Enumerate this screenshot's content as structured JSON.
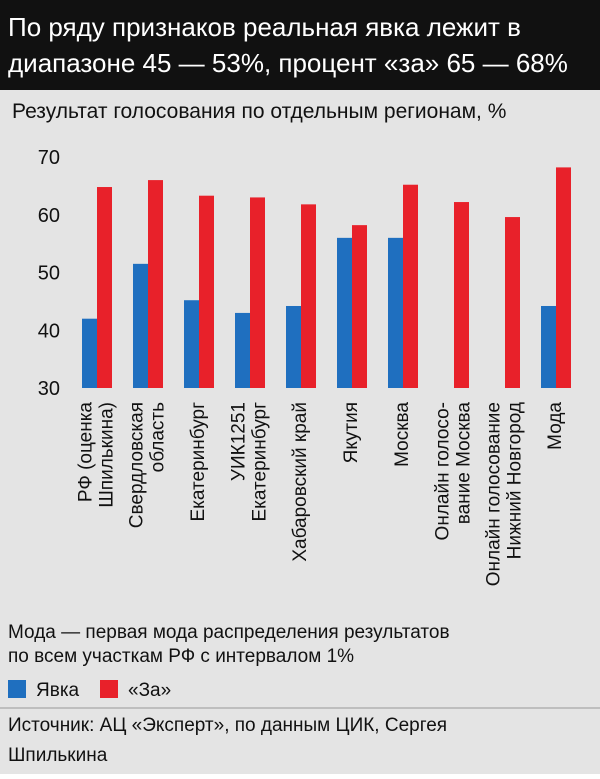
{
  "chart_data": {
    "type": "bar",
    "title": "По ряду признаков реальная явка лежит в\nдиапазоне 45 — 53%, процент «за» 65 — 68%",
    "subtitle": "Результат голосования по отдельным регионам, %",
    "categories": [
      "РФ (оценка\nШпилькина)",
      "Свердловская\nобласть",
      "Екатеринбург",
      "УИК1251\nЕкатеринбург",
      "Хабаровский край",
      "Якутия",
      "Москва",
      "Онлайн голосо-\nвание Москва",
      "Онлайн голосование\nНижний Новгород",
      "Мода"
    ],
    "series": [
      {
        "name": "Явка",
        "color": "#1f6fbf",
        "values": [
          42,
          51.5,
          45.2,
          43,
          44.2,
          56,
          56,
          null,
          null,
          44.2
        ]
      },
      {
        "name": "«За»",
        "color": "#e8212a",
        "values": [
          64.8,
          66,
          63.3,
          63,
          61.8,
          58.2,
          65.2,
          62.2,
          59.6,
          68.2
        ]
      }
    ],
    "ylim": [
      30,
      70
    ],
    "yticks": [
      30,
      40,
      50,
      60,
      70
    ],
    "note": "Мода — первая мода распределения результатов\nпо всем участкам РФ с интервалом 1%",
    "source": "Источник: АЦ «Эксперт», по данным ЦИК, Сергея\nШпилькина"
  }
}
